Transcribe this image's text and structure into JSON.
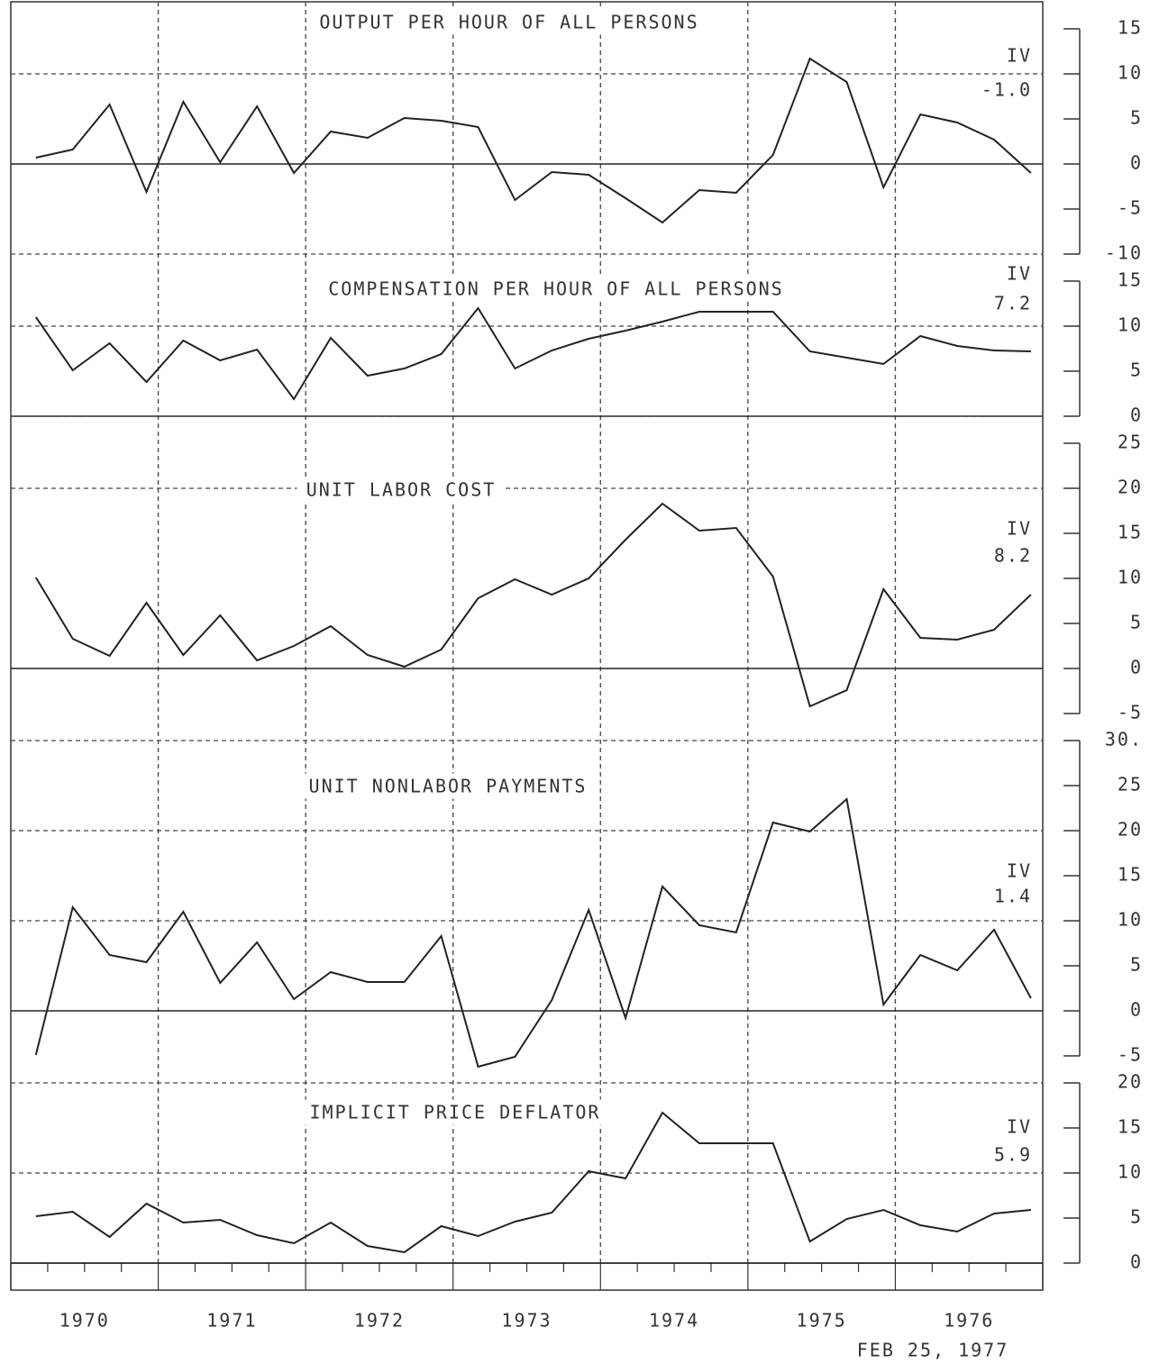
{
  "date_note": "FEB 25, 1977",
  "chart_data": [
    {
      "type": "line",
      "title": "OUTPUT PER HOUR OF ALL PERSONS",
      "annotation": [
        "IV",
        "-1.0"
      ],
      "color": "#222",
      "xlim": [
        1970,
        1977
      ],
      "x": [
        1970.17,
        1970.42,
        1970.67,
        1970.92,
        1971.17,
        1971.42,
        1971.67,
        1971.92,
        1972.17,
        1972.42,
        1972.67,
        1972.92,
        1973.17,
        1973.42,
        1973.67,
        1973.92,
        1974.17,
        1974.42,
        1974.67,
        1974.92,
        1975.17,
        1975.42,
        1975.67,
        1975.92,
        1976.17,
        1976.42,
        1976.67,
        1976.92
      ],
      "values": [
        0.7,
        1.6,
        6.6,
        -3.1,
        6.9,
        0.2,
        6.4,
        -1.0,
        3.6,
        2.9,
        5.1,
        4.8,
        4.1,
        -4.0,
        -0.9,
        -1.2,
        -3.8,
        -6.5,
        -2.9,
        -3.2,
        1.0,
        11.7,
        9.1,
        -2.6,
        5.5,
        4.6,
        2.7,
        -1.0
      ],
      "ylim": [
        -10,
        18
      ],
      "yticks": [
        15,
        10,
        5,
        0,
        -5,
        -10
      ],
      "grid": [
        10
      ]
    },
    {
      "type": "line",
      "title": "COMPENSATION PER HOUR OF ALL PERSONS",
      "annotation": [
        "IV",
        "7.2"
      ],
      "color": "#222",
      "xlim": [
        1970,
        1977
      ],
      "x": [
        1970.17,
        1970.42,
        1970.67,
        1970.92,
        1971.17,
        1971.42,
        1971.67,
        1971.92,
        1972.17,
        1972.42,
        1972.67,
        1972.92,
        1973.17,
        1973.42,
        1973.67,
        1973.92,
        1974.17,
        1974.42,
        1974.67,
        1974.92,
        1975.17,
        1975.42,
        1975.67,
        1975.92,
        1976.17,
        1976.42,
        1976.67,
        1976.92
      ],
      "values": [
        11.0,
        5.1,
        8.1,
        3.8,
        8.4,
        6.2,
        7.4,
        1.9,
        8.7,
        4.5,
        5.3,
        6.9,
        12.0,
        5.3,
        7.3,
        8.6,
        9.5,
        10.5,
        11.6,
        11.6,
        11.6,
        7.2,
        6.5,
        5.8,
        8.9,
        7.8,
        7.3,
        7.2
      ],
      "ylim": [
        0,
        18
      ],
      "yticks": [
        15,
        10,
        5,
        0
      ],
      "grid": [
        10
      ]
    },
    {
      "type": "line",
      "title": "UNIT LABOR COST",
      "annotation": [
        "IV",
        "8.2"
      ],
      "color": "#222",
      "xlim": [
        1970,
        1977
      ],
      "x": [
        1970.17,
        1970.42,
        1970.67,
        1970.92,
        1971.17,
        1971.42,
        1971.67,
        1971.92,
        1972.17,
        1972.42,
        1972.67,
        1972.92,
        1973.17,
        1973.42,
        1973.67,
        1973.92,
        1974.17,
        1974.42,
        1974.67,
        1974.92,
        1975.17,
        1975.42,
        1975.67,
        1975.92,
        1976.17,
        1976.42,
        1976.67,
        1976.92
      ],
      "values": [
        10.1,
        3.3,
        1.4,
        7.3,
        1.5,
        5.9,
        0.9,
        2.5,
        4.7,
        1.5,
        0.2,
        2.1,
        7.8,
        9.9,
        8.2,
        10.0,
        14.3,
        18.3,
        15.3,
        15.6,
        10.2,
        -4.2,
        -2.4,
        8.8,
        3.4,
        3.2,
        4.3,
        8.2
      ],
      "ylim": [
        -8,
        28
      ],
      "yticks": [
        25,
        20,
        15,
        10,
        5,
        0,
        -5
      ],
      "grid": [
        20
      ]
    },
    {
      "type": "line",
      "title": "UNIT NONLABOR PAYMENTS",
      "annotation": [
        "IV",
        "1.4"
      ],
      "color": "#222",
      "xlim": [
        1970,
        1977
      ],
      "x": [
        1970.17,
        1970.42,
        1970.67,
        1970.92,
        1971.17,
        1971.42,
        1971.67,
        1971.92,
        1972.17,
        1972.42,
        1972.67,
        1972.92,
        1973.17,
        1973.42,
        1973.67,
        1973.92,
        1974.17,
        1974.42,
        1974.67,
        1974.92,
        1975.17,
        1975.42,
        1975.67,
        1975.92,
        1976.17,
        1976.42,
        1976.67,
        1976.92
      ],
      "values": [
        -4.9,
        11.5,
        6.2,
        5.4,
        11.0,
        3.1,
        7.6,
        1.3,
        4.3,
        3.2,
        3.2,
        8.3,
        -6.2,
        -5.1,
        1.2,
        11.2,
        -0.8,
        13.8,
        9.5,
        8.7,
        20.9,
        19.9,
        23.5,
        0.7,
        6.2,
        4.5,
        9.0,
        1.4
      ],
      "ylim": [
        -8,
        30
      ],
      "yticks": [
        {
          "value": 30,
          "label": "30."
        },
        25,
        20,
        15,
        10,
        5,
        0,
        -5
      ],
      "grid": [
        20,
        10
      ]
    },
    {
      "type": "line",
      "title": "IMPLICIT PRICE DEFLATOR",
      "annotation": [
        "IV",
        "5.9"
      ],
      "color": "#222",
      "xlim": [
        1970,
        1977
      ],
      "x": [
        1970.17,
        1970.42,
        1970.67,
        1970.92,
        1971.17,
        1971.42,
        1971.67,
        1971.92,
        1972.17,
        1972.42,
        1972.67,
        1972.92,
        1973.17,
        1973.42,
        1973.67,
        1973.92,
        1974.17,
        1974.42,
        1974.67,
        1974.92,
        1975.17,
        1975.42,
        1975.67,
        1975.92,
        1976.17,
        1976.42,
        1976.67,
        1976.92
      ],
      "values": [
        5.2,
        5.7,
        2.9,
        6.6,
        4.5,
        4.8,
        3.1,
        2.2,
        4.5,
        1.9,
        1.2,
        4.1,
        3.0,
        4.6,
        5.6,
        10.2,
        9.4,
        16.7,
        13.3,
        13.3,
        13.3,
        2.4,
        4.9,
        5.9,
        4.2,
        3.5,
        5.5,
        5.9
      ],
      "ylim": [
        0,
        20
      ],
      "yticks": [
        20,
        15,
        10,
        5,
        0
      ],
      "grid": [
        10
      ],
      "xticks": [
        {
          "value": 1970.5,
          "label": "1970"
        },
        {
          "value": 1971.5,
          "label": "1971"
        },
        {
          "value": 1972.5,
          "label": "1972"
        },
        {
          "value": 1973.5,
          "label": "1973"
        },
        {
          "value": 1974.5,
          "label": "1974"
        },
        {
          "value": 1975.5,
          "label": "1975"
        },
        {
          "value": 1976.5,
          "label": "1976"
        }
      ]
    }
  ]
}
